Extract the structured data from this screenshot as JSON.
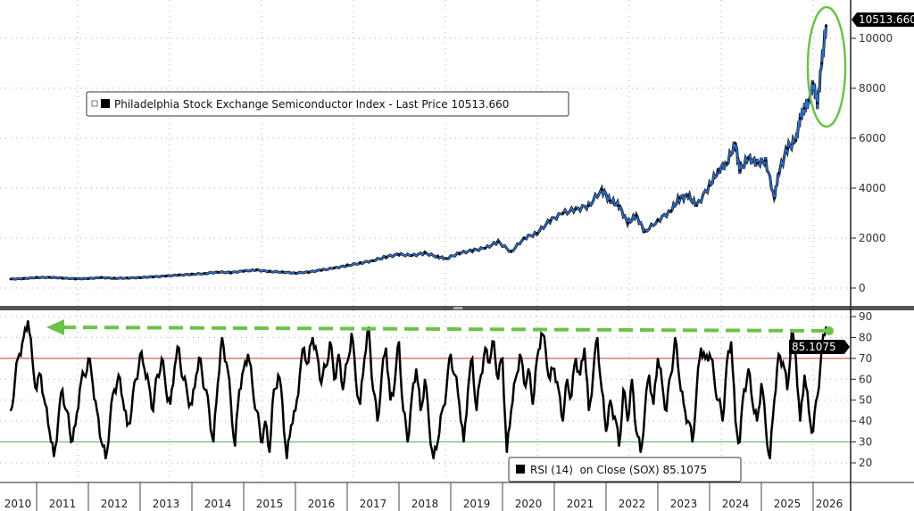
{
  "chart_data": [
    {
      "type": "line",
      "legend": "Philadelphia Stock Exchange Semiconductor Index - Last Price 10513.660",
      "last_value_label": "10513.660",
      "ylim": [
        -700,
        11400
      ],
      "yticks": [
        "0",
        "2000",
        "4000",
        "6000",
        "8000",
        "10000"
      ],
      "ytick_values": [
        0,
        2000,
        4000,
        6000,
        8000,
        10000
      ],
      "grid": true,
      "series_color": "#2b6fd1",
      "points": [
        [
          "2010-07",
          360
        ],
        [
          "2010-10",
          380
        ],
        [
          "2011-01",
          420
        ],
        [
          "2011-04",
          430
        ],
        [
          "2011-07",
          400
        ],
        [
          "2011-10",
          370
        ],
        [
          "2012-01",
          380
        ],
        [
          "2012-04",
          420
        ],
        [
          "2012-07",
          390
        ],
        [
          "2012-10",
          400
        ],
        [
          "2013-01",
          420
        ],
        [
          "2013-04",
          450
        ],
        [
          "2013-07",
          480
        ],
        [
          "2013-10",
          520
        ],
        [
          "2014-01",
          550
        ],
        [
          "2014-04",
          580
        ],
        [
          "2014-07",
          640
        ],
        [
          "2014-10",
          620
        ],
        [
          "2015-01",
          680
        ],
        [
          "2015-04",
          720
        ],
        [
          "2015-07",
          660
        ],
        [
          "2015-10",
          640
        ],
        [
          "2016-01",
          600
        ],
        [
          "2016-04",
          640
        ],
        [
          "2016-07",
          720
        ],
        [
          "2016-10",
          800
        ],
        [
          "2017-01",
          900
        ],
        [
          "2017-04",
          1000
        ],
        [
          "2017-07",
          1100
        ],
        [
          "2017-10",
          1250
        ],
        [
          "2018-01",
          1350
        ],
        [
          "2018-04",
          1300
        ],
        [
          "2018-07",
          1400
        ],
        [
          "2018-10",
          1250
        ],
        [
          "2018-12",
          1180
        ],
        [
          "2019-03",
          1400
        ],
        [
          "2019-06",
          1500
        ],
        [
          "2019-09",
          1600
        ],
        [
          "2019-12",
          1850
        ],
        [
          "2020-03",
          1450
        ],
        [
          "2020-06",
          2000
        ],
        [
          "2020-09",
          2200
        ],
        [
          "2020-12",
          2700
        ],
        [
          "2021-03",
          3000
        ],
        [
          "2021-06",
          3150
        ],
        [
          "2021-09",
          3300
        ],
        [
          "2021-12",
          3950
        ],
        [
          "2022-02",
          3500
        ],
        [
          "2022-04",
          3300
        ],
        [
          "2022-06",
          2600
        ],
        [
          "2022-08",
          2900
        ],
        [
          "2022-10",
          2250
        ],
        [
          "2023-01",
          2700
        ],
        [
          "2023-04",
          3100
        ],
        [
          "2023-06",
          3600
        ],
        [
          "2023-08",
          3700
        ],
        [
          "2023-10",
          3300
        ],
        [
          "2024-01",
          4100
        ],
        [
          "2024-03",
          4700
        ],
        [
          "2024-05",
          5000
        ],
        [
          "2024-07",
          5800
        ],
        [
          "2024-08",
          4700
        ],
        [
          "2024-10",
          5200
        ],
        [
          "2024-12",
          5000
        ],
        [
          "2025-02",
          5100
        ],
        [
          "2025-04",
          3600
        ],
        [
          "2025-05",
          4600
        ],
        [
          "2025-07",
          5600
        ],
        [
          "2025-09",
          5900
        ],
        [
          "2025-10",
          6800
        ],
        [
          "2025-11",
          7200
        ],
        [
          "2025-12",
          7500
        ],
        [
          "2026-01",
          8200
        ],
        [
          "2026-02",
          7400
        ],
        [
          "2026-03",
          9000
        ],
        [
          "2026-04",
          10513.66
        ]
      ]
    },
    {
      "type": "line",
      "legend": "RSI (14)  on Close (SOX) 85.1075",
      "last_value_label": "85.1075",
      "ylim": [
        10,
        92
      ],
      "yticks": [
        "20",
        "30",
        "40",
        "50",
        "60",
        "70",
        "80",
        "90"
      ],
      "ytick_values": [
        20,
        30,
        40,
        50,
        60,
        70,
        80,
        90
      ],
      "overbought": 70,
      "oversold": 30,
      "overbought_color": "#c0392b",
      "oversold_color": "#4caf50",
      "start": "2010-07",
      "frequency": "monthly",
      "values": [
        45,
        60,
        72,
        80,
        88,
        70,
        55,
        62,
        48,
        35,
        23,
        40,
        55,
        45,
        30,
        38,
        55,
        62,
        70,
        58,
        45,
        30,
        22,
        40,
        55,
        62,
        50,
        38,
        45,
        60,
        72,
        65,
        58,
        45,
        62,
        70,
        55,
        48,
        66,
        75,
        60,
        52,
        48,
        62,
        70,
        55,
        45,
        30,
        58,
        80,
        68,
        50,
        28,
        55,
        65,
        72,
        58,
        45,
        30,
        40,
        25,
        55,
        62,
        48,
        22,
        38,
        45,
        62,
        75,
        68,
        80,
        72,
        58,
        66,
        78,
        60,
        72,
        55,
        68,
        82,
        60,
        48,
        70,
        85,
        55,
        40,
        62,
        75,
        50,
        58,
        78,
        45,
        30,
        52,
        65,
        45,
        60,
        38,
        22,
        30,
        45,
        55,
        72,
        62,
        48,
        30,
        55,
        70,
        45,
        62,
        75,
        68,
        78,
        60,
        70,
        25,
        45,
        60,
        72,
        58,
        65,
        48,
        70,
        82,
        74,
        60,
        65,
        55,
        40,
        60,
        52,
        70,
        62,
        75,
        45,
        62,
        80,
        55,
        35,
        50,
        42,
        28,
        55,
        40,
        60,
        35,
        25,
        45,
        62,
        48,
        70,
        58,
        45,
        62,
        80,
        60,
        48,
        40,
        30,
        55,
        75,
        70,
        72,
        62,
        50,
        40,
        68,
        78,
        40,
        30,
        55,
        65,
        48,
        40,
        58,
        38,
        22,
        50,
        72,
        68,
        55,
        82,
        70,
        40,
        62,
        45,
        35,
        52,
        75,
        85.1075
      ]
    }
  ],
  "x_axis": {
    "labels": [
      "2010",
      "2011",
      "2012",
      "2013",
      "2014",
      "2015",
      "2016",
      "2017",
      "2018",
      "2019",
      "2020",
      "2021",
      "2022",
      "2023",
      "2024",
      "2025",
      "2026"
    ]
  },
  "annotation_color": "#6cc24a"
}
